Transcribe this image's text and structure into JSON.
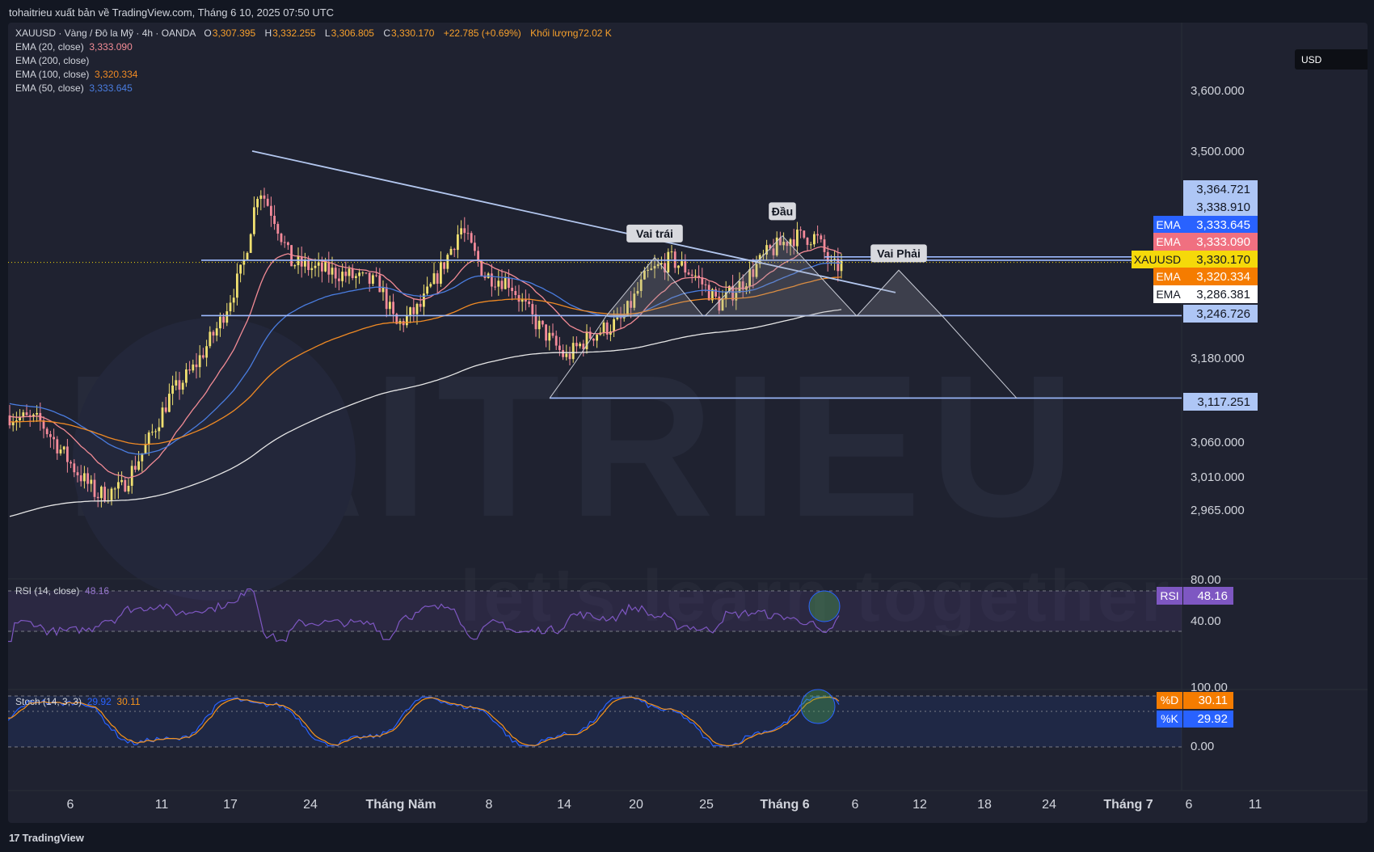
{
  "header": {
    "publish_text": "tohaitrieu xuất bản về TradingView.com, Tháng 6 10, 2025 07:50 UTC",
    "currency": "USD"
  },
  "legend": {
    "symbol": "XAUUSD · Vàng / Đô la Mỹ · 4h · OANDA",
    "open_k": "O",
    "open": "3,307.395",
    "high_k": "H",
    "high": "3,332.255",
    "low_k": "L",
    "low": "3,306.805",
    "close_k": "C",
    "close": "3,330.170",
    "change": "+22.785 (+0.69%)",
    "volume_k": "Khối lượng",
    "volume": "72.02 K",
    "ema20_label": "EMA (20, close)",
    "ema20_value": "3,333.090",
    "ema200_label": "EMA (200, close)",
    "ema200_value": "",
    "ema100_label": "EMA (100, close)",
    "ema100_value": "3,320.334",
    "ema50_label": "EMA (50, close)",
    "ema50_value": "3,333.645"
  },
  "colors": {
    "up": "#f0e070",
    "down": "#f48a9a",
    "ema20": "#f28b95",
    "ema50": "#4a7de0",
    "ema100": "#f08a24",
    "ema200": "#e7e7e7",
    "level_line": "#9ebbff",
    "trend_line": "#b4c8f0",
    "rsi_line": "#7e57c2",
    "stoch_k": "#2962ff",
    "stoch_d": "#f7931a"
  },
  "chart_data": {
    "type": "candlestick",
    "timeframe": "4h",
    "x_ticks": [
      "6",
      "11",
      "17",
      "24",
      "Tháng Năm",
      "8",
      "14",
      "20",
      "25",
      "Tháng 6",
      "6",
      "12",
      "18",
      "24",
      "Tháng 7",
      "6",
      "11"
    ],
    "y_ticks": [
      "3,600.000",
      "3,500.000",
      "3,180.000",
      "3,060.000",
      "3,010.000",
      "2,965.000"
    ],
    "price_levels": [
      {
        "label": "",
        "value": "3,364.721",
        "bg": "#aec6f5",
        "fg": "#131722"
      },
      {
        "label": "",
        "value": "3,338.910",
        "bg": "#aec6f5",
        "fg": "#131722"
      },
      {
        "label": "EMA",
        "value": "3,333.645",
        "bg": "#2962ff",
        "fg": "#ffffff"
      },
      {
        "label": "EMA",
        "value": "3,333.090",
        "bg": "#f07080",
        "fg": "#ffffff"
      },
      {
        "label": "XAUUSD",
        "value": "3,330.170",
        "bg": "#f5d90a",
        "fg": "#131722"
      },
      {
        "label": "EMA",
        "value": "3,320.334",
        "bg": "#f57c00",
        "fg": "#ffffff"
      },
      {
        "label": "EMA",
        "value": "3,286.381",
        "bg": "#ffffff",
        "fg": "#131722"
      },
      {
        "label": "",
        "value": "3,246.726",
        "bg": "#aec6f5",
        "fg": "#131722"
      },
      {
        "label": "",
        "value": "3,117.251",
        "bg": "#aec6f5",
        "fg": "#131722"
      }
    ],
    "annotations": [
      "Vai trái",
      "Đầu",
      "Vai Phải"
    ],
    "last_price": 3330.17
  },
  "rsi": {
    "label": "RSI (14, close)",
    "value": "48.16",
    "badge": "RSI",
    "ticks": [
      "80.00",
      "40.00"
    ]
  },
  "stoch": {
    "label": "Stoch (14, 3, 3)",
    "k_value": "29.92",
    "d_value": "30.11",
    "d_badge": "%D",
    "k_badge": "%K",
    "ticks": [
      "100.00",
      "0.00"
    ]
  },
  "watermark": {
    "line1": "HAITRIEU",
    "line2": "let's learn together"
  },
  "footer": {
    "brand": "TradingView",
    "brand_mark": "17"
  }
}
